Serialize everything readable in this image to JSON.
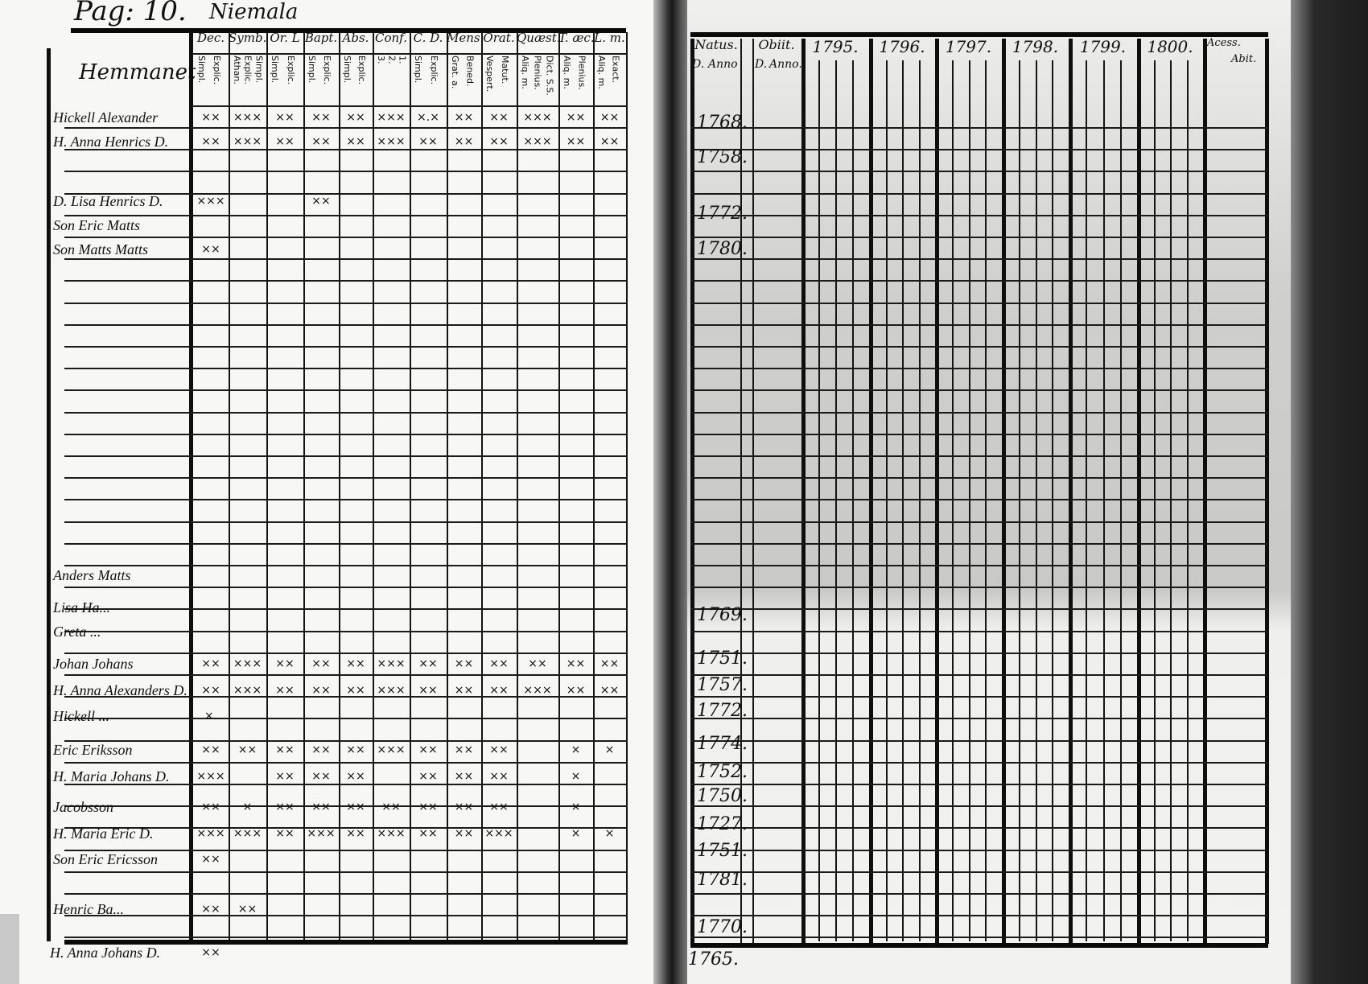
{
  "left_page": {
    "page_label": "Pag: 10.",
    "village": "Niemala",
    "name_column_header": "Hemmanet",
    "columns": [
      {
        "label": "Dec.",
        "sub": [
          "Simpl.",
          "Explic."
        ]
      },
      {
        "label": "Symb.",
        "sub": [
          "Athan.",
          "Explic.",
          "Simpl."
        ]
      },
      {
        "label": "Or. L",
        "sub": [
          "Simpl.",
          "Explic."
        ]
      },
      {
        "label": "Bapt.",
        "sub": [
          "Simpl.",
          "Explic."
        ]
      },
      {
        "label": "Abs.",
        "sub": [
          "Simpl.",
          "Explic."
        ]
      },
      {
        "label": "Conf.",
        "sub": [
          "3.",
          "2.",
          "1."
        ]
      },
      {
        "label": "C. D.",
        "sub": [
          "Simpl.",
          "Explic."
        ]
      },
      {
        "label": "Mens.",
        "sub": [
          "Grat. a.",
          "Bened."
        ]
      },
      {
        "label": "Orat.",
        "sub": [
          "Vespert.",
          "Matut."
        ]
      },
      {
        "label": "Quæst.",
        "sub": [
          "Aliq. m.",
          "Plenius.",
          "Dict. S.S."
        ]
      },
      {
        "label": "T. æc.",
        "sub": [
          "Aliq. m.",
          "Plenius."
        ]
      },
      {
        "label": "L. m.",
        "sub": [
          "Aliq. m.",
          "Exact."
        ]
      }
    ],
    "rows": [
      {
        "name": "Hickell Alexander",
        "marks": [
          "××",
          "×××",
          "××",
          "××",
          "××",
          "×××",
          "×.×",
          "××",
          "××",
          "×××",
          "××",
          "××"
        ]
      },
      {
        "name": "H. Anna Henrics D.",
        "marks": [
          "××",
          "×××",
          "××",
          "××",
          "××",
          "×××",
          "××",
          "××",
          "××",
          "×××",
          "××",
          "××"
        ]
      },
      {
        "name": "D. Lisa Henrics D.",
        "marks": [
          "×××",
          "",
          "",
          " ××",
          "",
          "",
          "",
          "",
          "",
          "",
          "",
          ""
        ]
      },
      {
        "name": "Son Eric Matts",
        "marks": [
          "",
          "",
          "",
          "",
          "",
          "",
          "",
          "",
          "",
          "",
          "",
          ""
        ]
      },
      {
        "name": "Son Matts Matts",
        "marks": [
          "××",
          "",
          "",
          "",
          "",
          "",
          "",
          "",
          "",
          "",
          "",
          ""
        ]
      },
      {
        "name": "Anders Matts",
        "marks": [
          "",
          "",
          "",
          "",
          "",
          "",
          "",
          "",
          "",
          "",
          "",
          ""
        ]
      },
      {
        "name": "Lisa Ha...",
        "marks": [
          "",
          "",
          "",
          "",
          "",
          "",
          "",
          "",
          "",
          "",
          "",
          ""
        ]
      },
      {
        "name": "Greta ...",
        "marks": [
          "",
          "",
          "",
          "",
          "",
          "",
          "",
          "",
          "",
          "",
          "",
          ""
        ]
      },
      {
        "name": "Johan Johans",
        "marks": [
          "××",
          "×××",
          "××",
          "××",
          "××",
          "×××",
          "××",
          "××",
          "××",
          "××",
          "××",
          "××"
        ]
      },
      {
        "name": "H. Anna Alexanders D.",
        "marks": [
          "××",
          "×××",
          "××",
          "××",
          "××",
          "×××",
          "××",
          "××",
          "××",
          "×××",
          "××",
          "××"
        ]
      },
      {
        "name": "Hickell ...",
        "marks": [
          "×.",
          "",
          "",
          "",
          "",
          "",
          "",
          "",
          "",
          "",
          "",
          ""
        ]
      },
      {
        "name": "Eric Eriksson",
        "marks": [
          "××",
          "××",
          "××",
          "××",
          "××",
          "×××",
          "××",
          "××",
          "××",
          "",
          "×",
          "×"
        ]
      },
      {
        "name": "H. Maria Johans D.",
        "marks": [
          "×××",
          "",
          "××",
          "××",
          "××",
          "",
          "××",
          "××",
          "××",
          "",
          "×",
          ""
        ]
      },
      {
        "name": "Jacobsson",
        "marks": [
          "××",
          "×",
          "××",
          "××",
          "××",
          "××",
          "××",
          "××",
          "××",
          "",
          "×",
          ""
        ]
      },
      {
        "name": "H. Maria Eric D.",
        "marks": [
          "×××",
          "×××",
          "××",
          "×××",
          "××",
          "×××",
          "××",
          "××",
          "×××",
          "",
          "×",
          "×"
        ]
      },
      {
        "name": "Son Eric Ericsson",
        "marks": [
          "××",
          "",
          "",
          "",
          "",
          "",
          "",
          "",
          "",
          "",
          "",
          ""
        ]
      },
      {
        "name": "Henric Ba...",
        "marks": [
          "××",
          "××",
          "",
          "",
          "",
          "",
          "",
          "",
          "",
          "",
          "",
          ""
        ]
      },
      {
        "name": "H. Anna Johans D.",
        "marks": [
          "××",
          "",
          "",
          "",
          "",
          "",
          "",
          "",
          "",
          "",
          "",
          ""
        ]
      }
    ]
  },
  "right_page": {
    "headers": {
      "natus": "Natus.",
      "natus_sub": [
        "D.",
        "Anno"
      ],
      "obiit": "Obiit.",
      "obiit_sub": [
        "D.",
        "Anno."
      ],
      "years": [
        "1795.",
        "1796.",
        "1797.",
        "1798.",
        "1799.",
        "1800."
      ],
      "accessit": "Acess.",
      "abiit": "Abit."
    },
    "birth_years": [
      "1768.",
      "1758.",
      "1772.",
      "1780.",
      "1769.",
      "1751.",
      "1757.",
      "1772.",
      "1774.",
      "1752.",
      "1750.",
      "1727.",
      "1751.",
      "1781.",
      "1770.",
      "1765."
    ]
  }
}
